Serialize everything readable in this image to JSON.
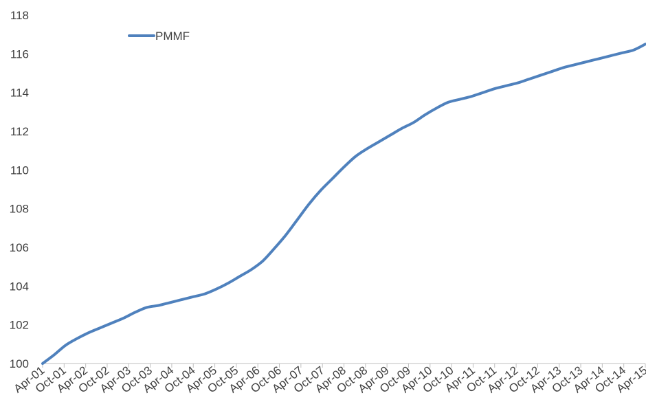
{
  "chart_data": {
    "type": "line",
    "title": "",
    "xlabel": "",
    "ylabel": "",
    "ylim": [
      100,
      118
    ],
    "yticks": [
      100,
      102,
      104,
      106,
      108,
      110,
      112,
      114,
      116,
      118
    ],
    "xticks": [
      "Apr-01",
      "Oct-01",
      "Apr-02",
      "Oct-02",
      "Apr-03",
      "Oct-03",
      "Apr-04",
      "Oct-04",
      "Apr-05",
      "Oct-05",
      "Apr-06",
      "Oct-06",
      "Apr-07",
      "Oct-07",
      "Apr-08",
      "Oct-08",
      "Apr-09",
      "Oct-09",
      "Apr-10",
      "Oct-10",
      "Apr-11",
      "Oct-11",
      "Apr-12",
      "Oct-12",
      "Apr-13",
      "Oct-13",
      "Apr-14",
      "Oct-14",
      "Apr-15"
    ],
    "grid": false,
    "legend": "top-left",
    "series": [
      {
        "name": "PMMF",
        "color": "#4F81BD",
        "points": [
          [
            "Apr-01",
            100.0
          ],
          [
            "Jul-01",
            100.45
          ],
          [
            "Oct-01",
            100.95
          ],
          [
            "Jan-02",
            101.3
          ],
          [
            "Apr-02",
            101.6
          ],
          [
            "Jul-02",
            101.85
          ],
          [
            "Oct-02",
            102.1
          ],
          [
            "Jan-02b",
            102.35
          ],
          [
            "Apr-03",
            102.65
          ],
          [
            "Jul-03",
            102.9
          ],
          [
            "Oct-03",
            103.0
          ],
          [
            "Jan-04",
            103.15
          ],
          [
            "Apr-04",
            103.3
          ],
          [
            "Jul-04",
            103.45
          ],
          [
            "Oct-04",
            103.6
          ],
          [
            "Jan-05",
            103.85
          ],
          [
            "Apr-05",
            104.15
          ],
          [
            "Jul-05",
            104.5
          ],
          [
            "Oct-05",
            104.85
          ],
          [
            "Jan-06",
            105.3
          ],
          [
            "Apr-06",
            105.95
          ],
          [
            "Jul-06",
            106.65
          ],
          [
            "Oct-06",
            107.45
          ],
          [
            "Jan-07",
            108.25
          ],
          [
            "Apr-07",
            108.95
          ],
          [
            "Jul-07",
            109.55
          ],
          [
            "Oct-07",
            110.15
          ],
          [
            "Jan-08",
            110.7
          ],
          [
            "Apr-08",
            111.1
          ],
          [
            "Jul-08",
            111.45
          ],
          [
            "Oct-08",
            111.8
          ],
          [
            "Jan-09",
            112.15
          ],
          [
            "Apr-09",
            112.45
          ],
          [
            "Jul-09",
            112.85
          ],
          [
            "Oct-09",
            113.2
          ],
          [
            "Jan-10",
            113.5
          ],
          [
            "Apr-10",
            113.65
          ],
          [
            "Jul-10",
            113.8
          ],
          [
            "Oct-10",
            114.0
          ],
          [
            "Jan-11",
            114.2
          ],
          [
            "Apr-11",
            114.35
          ],
          [
            "Jul-11",
            114.5
          ],
          [
            "Oct-11",
            114.7
          ],
          [
            "Jan-12",
            114.9
          ],
          [
            "Apr-12",
            115.1
          ],
          [
            "Jul-12",
            115.3
          ],
          [
            "Oct-12",
            115.45
          ],
          [
            "Jan-13",
            115.6
          ],
          [
            "Apr-13",
            115.75
          ],
          [
            "Jul-13",
            115.9
          ],
          [
            "Oct-13",
            116.05
          ],
          [
            "Jan-14",
            116.2
          ],
          [
            "Apr-15",
            116.5
          ]
        ]
      }
    ]
  }
}
